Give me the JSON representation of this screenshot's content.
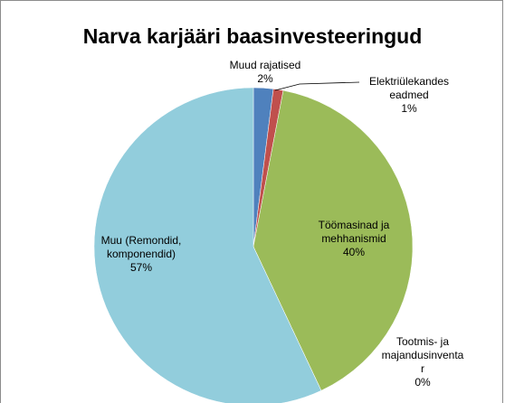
{
  "chart_data": {
    "type": "pie",
    "title": "Narva karjääri baasinvesteeringud",
    "categories": [
      "Muud rajatised",
      "Elektriülekandes eadmed",
      "Töömasinad ja mehhanismid",
      "Tootmis- ja majandusinventar",
      "Muu (Remondid, komponendid)"
    ],
    "values": [
      2,
      1,
      40,
      0,
      57
    ],
    "value_labels": [
      "2%",
      "1%",
      "40%",
      "0%",
      "57%"
    ],
    "colors": [
      "#4f81bd",
      "#c0504d",
      "#9bbb59",
      "#8064a2",
      "#92cddc"
    ]
  }
}
